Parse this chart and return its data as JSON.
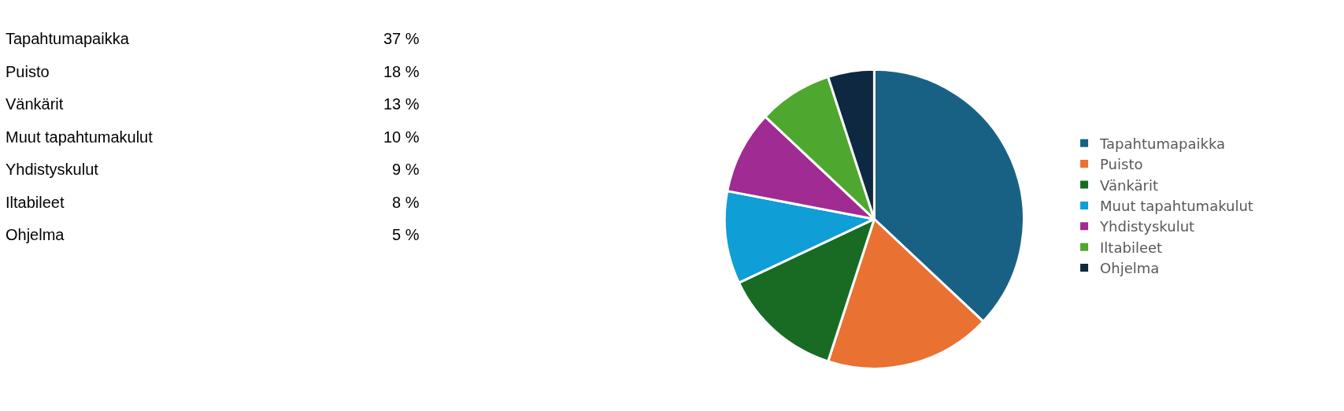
{
  "chart_data": [
    {
      "type": "other",
      "annotations": [
        "Tapahtumapaikka",
        "37 %",
        "Puisto",
        "18 %",
        "Vänkärit",
        "13 %",
        "Muut tapahtumakulut",
        "10 %",
        "Yhdistyskulut",
        "9 %",
        "Iltabileet",
        "8 %",
        "Ohjelma",
        "5 %"
      ]
    },
    {
      "type": "pie",
      "categories": [
        "Tapahtumapaikka",
        "Puisto",
        "Vänkärit",
        "Muut tapahtumakulut",
        "Yhdistyskulut",
        "Iltabileet",
        "Ohjelma"
      ],
      "values": [
        37,
        18,
        13,
        10,
        9,
        8,
        5
      ],
      "colors": [
        "#196184",
        "#e97132",
        "#196b24",
        "#0f9ed5",
        "#a02b93",
        "#4ea72e",
        "#0e2841"
      ],
      "legend": "right"
    }
  ]
}
